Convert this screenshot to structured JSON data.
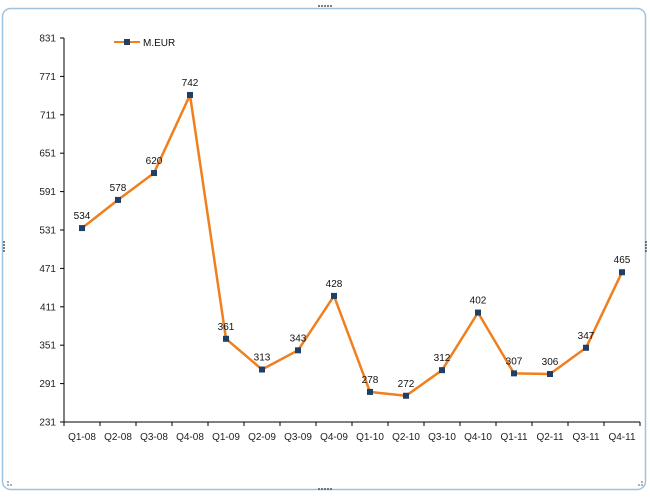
{
  "chart_data": {
    "type": "line",
    "title": "",
    "xlabel": "",
    "ylabel": "",
    "categories": [
      "Q1-08",
      "Q2-08",
      "Q3-08",
      "Q4-08",
      "Q1-09",
      "Q2-09",
      "Q3-09",
      "Q4-09",
      "Q1-10",
      "Q2-10",
      "Q3-10",
      "Q4-10",
      "Q1-11",
      "Q2-11",
      "Q3-11",
      "Q4-11"
    ],
    "series": [
      {
        "name": "M.EUR",
        "values": [
          534,
          578,
          620,
          742,
          361,
          313,
          343,
          428,
          278,
          272,
          312,
          402,
          307,
          306,
          347,
          465
        ],
        "labels": [
          "534",
          "578",
          "620",
          "742",
          "361",
          "313",
          "343",
          "428",
          "278",
          "272",
          "312",
          "402",
          "307",
          "306",
          "347",
          "465"
        ]
      }
    ],
    "ylim": [
      231,
      831
    ],
    "yticks": [
      231,
      291,
      351,
      411,
      471,
      531,
      591,
      651,
      711,
      771,
      831
    ],
    "grid": false,
    "legend_position": "top-left",
    "colors": {
      "line": "#F07F1E",
      "marker": "#1F3F66",
      "frame_border": "#9FC3DE"
    }
  }
}
